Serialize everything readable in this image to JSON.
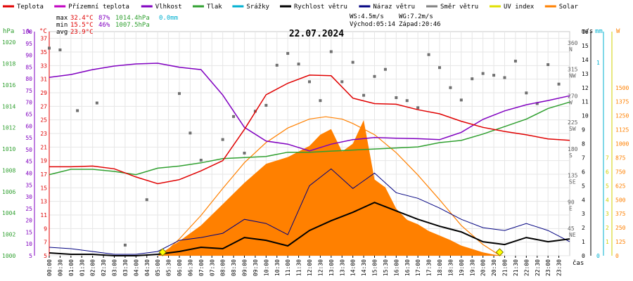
{
  "chart_data": {
    "type": "line",
    "title": "22.07.2024",
    "legend": [
      {
        "label": "Teplota",
        "color": "#e00000"
      },
      {
        "label": "Přízemní teplota",
        "color": "#c000c0"
      },
      {
        "label": "Vlhkost",
        "color": "#8000c0"
      },
      {
        "label": "Tlak",
        "color": "#30a030"
      },
      {
        "label": "Srážky",
        "color": "#00b0d0"
      },
      {
        "label": "Rychlost větru",
        "color": "#000000"
      },
      {
        "label": "Náraz větru",
        "color": "#000080"
      },
      {
        "label": "Směr větru",
        "color": "#808080"
      },
      {
        "label": "UV index",
        "color": "#e0e000"
      },
      {
        "label": "Solar",
        "color": "#ff8000"
      }
    ],
    "stats": {
      "max": {
        "label": "max",
        "temp": "32.4°C",
        "hum": "87%",
        "press": "1014.4hPa",
        "rain": "0.0mm"
      },
      "min": {
        "label": "min",
        "temp": "15.5°C",
        "hum": "46%",
        "press": "1007.5hPa"
      },
      "avg": {
        "label": "avg",
        "temp": "23.9°C"
      }
    },
    "wind_info": {
      "ws": "WS:4.5m/s",
      "wg": "WG:7.2m/s"
    },
    "sun_info": {
      "sunrise": "Východ:05:14",
      "sunset": "Západ:20:46"
    },
    "axes": {
      "hpa": {
        "unit": "hPa",
        "ticks": [
          1000,
          1002,
          1004,
          1006,
          1008,
          1010,
          1012,
          1014,
          1016,
          1018,
          1020
        ],
        "range": [
          1000,
          1021
        ]
      },
      "hum": {
        "unit": "%",
        "ticks": [
          5,
          10,
          15,
          20,
          25,
          30,
          35,
          40,
          45,
          50,
          55,
          60,
          65,
          70,
          75,
          80,
          85,
          90,
          95,
          100
        ],
        "range": [
          5,
          100
        ]
      },
      "temp": {
        "unit": "°C",
        "ticks": [
          5,
          7,
          9,
          11,
          13,
          15,
          17,
          19,
          21,
          23,
          25,
          27,
          29,
          31,
          33,
          35,
          37
        ],
        "range": [
          5,
          38
        ]
      },
      "dir": {
        "ticks": [
          {
            "deg": 360,
            "name": "N"
          },
          {
            "deg": 315,
            "name": "NW"
          },
          {
            "deg": 270,
            "name": "W"
          },
          {
            "deg": 225,
            "name": "SW"
          },
          {
            "deg": 180,
            "name": "S"
          },
          {
            "deg": 135,
            "name": "SE"
          },
          {
            "deg": 90,
            "name": "E"
          },
          {
            "deg": 45,
            "name": "NE"
          }
        ],
        "range": [
          0,
          380
        ]
      },
      "ms": {
        "unit": "m/s",
        "ticks": [
          0,
          1,
          2,
          3,
          4,
          5,
          6,
          7,
          8,
          9,
          10,
          11,
          12,
          13,
          14,
          15,
          16
        ],
        "range": [
          0,
          16
        ]
      },
      "mm": {
        "unit": "mm",
        "ticks": [
          0,
          1
        ],
        "range": [
          0,
          1.16
        ]
      },
      "uv": {
        "unit": "UV",
        "ticks": [
          1,
          2,
          3,
          4,
          5,
          6,
          7
        ],
        "range": [
          0,
          16
        ]
      },
      "wm2": {
        "ticks": [
          0,
          125,
          250,
          375,
          500,
          625,
          750,
          875,
          1000,
          1125,
          1250,
          1375,
          1500
        ],
        "range": [
          0,
          2000
        ]
      }
    },
    "x_axis": {
      "label": "čas",
      "range": [
        0,
        24
      ],
      "ticks": [
        "00:00",
        "00:30",
        "01:00",
        "01:30",
        "02:00",
        "02:30",
        "03:00",
        "03:30",
        "04:00",
        "04:30",
        "05:00",
        "05:30",
        "06:00",
        "06:30",
        "07:00",
        "07:30",
        "08:00",
        "08:30",
        "09:00",
        "09:30",
        "10:00",
        "10:30",
        "11:00",
        "11:30",
        "12:00",
        "12:30",
        "13:00",
        "13:30",
        "14:00",
        "14:30",
        "15:00",
        "15:30",
        "16:00",
        "16:30",
        "17:00",
        "17:30",
        "18:00",
        "18:30",
        "19:00",
        "19:30",
        "20:00",
        "20:30",
        "21:00",
        "21:30",
        "22:00",
        "22:30",
        "23:00",
        "23:30"
      ]
    },
    "series": {
      "temp": {
        "name": "Teplota",
        "x": [
          0,
          1,
          2,
          3,
          4,
          5,
          6,
          7,
          8,
          9,
          10,
          11,
          12,
          13,
          14,
          15,
          16,
          17,
          18,
          19,
          20,
          21,
          22,
          23,
          24
        ],
        "y": [
          18.1,
          18.1,
          18.2,
          17.8,
          16.6,
          15.6,
          16.2,
          17.5,
          19.0,
          23.6,
          28.7,
          30.4,
          31.6,
          31.5,
          28.2,
          27.4,
          27.3,
          26.5,
          25.9,
          24.8,
          23.9,
          23.3,
          22.8,
          22.2,
          22.0
        ]
      },
      "hum": {
        "name": "Vlhkost",
        "x": [
          0,
          1,
          2,
          3,
          4,
          5,
          6,
          7,
          8,
          9,
          10,
          11,
          12,
          13,
          14,
          15,
          16,
          17,
          18,
          19,
          20,
          21,
          22,
          23,
          24
        ],
        "y": [
          80.6,
          81.8,
          83.9,
          85.4,
          86.3,
          86.6,
          84.9,
          83.9,
          73.1,
          59.4,
          53.6,
          52.3,
          49.4,
          52.3,
          54.2,
          55.1,
          54.8,
          54.6,
          54.2,
          57.3,
          62.8,
          66.4,
          69.0,
          70.8,
          72.8
        ]
      },
      "press": {
        "name": "Tlak",
        "x": [
          0,
          1,
          2,
          3,
          4,
          5,
          6,
          7,
          8,
          9,
          10,
          11,
          12,
          13,
          14,
          15,
          16,
          17,
          18,
          19,
          20,
          21,
          22,
          23,
          24
        ],
        "y": [
          1007.6,
          1008.1,
          1008.1,
          1007.9,
          1007.6,
          1008.2,
          1008.4,
          1008.7,
          1009.1,
          1009.2,
          1009.3,
          1009.7,
          1009.7,
          1009.8,
          1009.9,
          1010.0,
          1010.1,
          1010.2,
          1010.6,
          1010.8,
          1011.4,
          1012.1,
          1012.8,
          1013.8,
          1014.4
        ]
      },
      "speed": {
        "name": "Rychlost větru",
        "x": [
          0,
          1,
          2,
          3,
          4,
          5,
          6,
          7,
          8,
          9,
          10,
          11,
          12,
          13,
          14,
          15,
          16,
          17,
          18,
          19,
          20,
          21,
          22,
          23,
          24
        ],
        "y": [
          0.2,
          0.1,
          0.1,
          0.0,
          0.0,
          0.1,
          0.3,
          0.6,
          0.5,
          1.3,
          1.1,
          0.7,
          1.8,
          2.5,
          3.1,
          3.8,
          3.2,
          2.6,
          2.1,
          1.7,
          1.0,
          0.8,
          1.3,
          1.0,
          1.2
        ]
      },
      "gust": {
        "name": "Náraz větru",
        "x": [
          0,
          1,
          2,
          3,
          4,
          5,
          6,
          7,
          8,
          9,
          10,
          11,
          12,
          13,
          14,
          15,
          16,
          17,
          18,
          19,
          20,
          21,
          22,
          23,
          24
        ],
        "y": [
          0.6,
          0.5,
          0.3,
          0.1,
          0.1,
          0.3,
          1.1,
          1.3,
          1.6,
          2.6,
          2.3,
          1.5,
          5.0,
          6.2,
          4.8,
          5.9,
          4.5,
          4.1,
          3.4,
          2.6,
          2.0,
          1.8,
          2.3,
          1.8,
          1.0
        ]
      },
      "dir": {
        "name": "Směr větru",
        "x": [
          0,
          0.5,
          1.3,
          2.2,
          3.5,
          4.5,
          6,
          6.5,
          7,
          8,
          8.5,
          9,
          9.5,
          10,
          10.5,
          11,
          11.5,
          12,
          12.5,
          13,
          13.5,
          14,
          14.5,
          15,
          15.5,
          16,
          16.5,
          17,
          17.5,
          18,
          18.5,
          19,
          19.5,
          20,
          20.5,
          21,
          21.5,
          22,
          22.5,
          23,
          23.5
        ],
        "y": [
          352,
          349,
          246,
          259,
          18,
          95,
          275,
          208,
          162,
          197,
          236,
          174,
          245,
          255,
          323,
          343,
          325,
          295,
          263,
          346,
          295,
          328,
          272,
          304,
          316,
          268,
          263,
          251,
          341,
          319,
          285,
          264,
          300,
          309,
          306,
          302,
          330,
          276,
          258,
          324,
          291
        ]
      },
      "solar": {
        "name": "Solar",
        "x": [
          5,
          6,
          7,
          8,
          9,
          10,
          11,
          12,
          12.5,
          13,
          13.5,
          14,
          14.5,
          15,
          15.5,
          16,
          16.5,
          17,
          17.5,
          18,
          18.5,
          19,
          19.5,
          20,
          20.5,
          21
        ],
        "y": [
          0,
          130,
          270,
          460,
          650,
          820,
          880,
          980,
          1080,
          1130,
          930,
          1000,
          1210,
          680,
          610,
          420,
          320,
          280,
          220,
          180,
          140,
          90,
          60,
          30,
          10,
          0
        ]
      },
      "solar_max": {
        "name": "Solar max",
        "x": [
          5.2,
          6,
          7,
          8,
          9,
          10,
          11,
          12,
          12.75,
          13.5,
          14,
          15,
          16,
          17,
          18,
          19,
          20,
          20.8
        ],
        "y": [
          0,
          150,
          360,
          600,
          830,
          1010,
          1140,
          1220,
          1240,
          1220,
          1180,
          1080,
          920,
          720,
          500,
          270,
          100,
          0
        ]
      }
    }
  }
}
